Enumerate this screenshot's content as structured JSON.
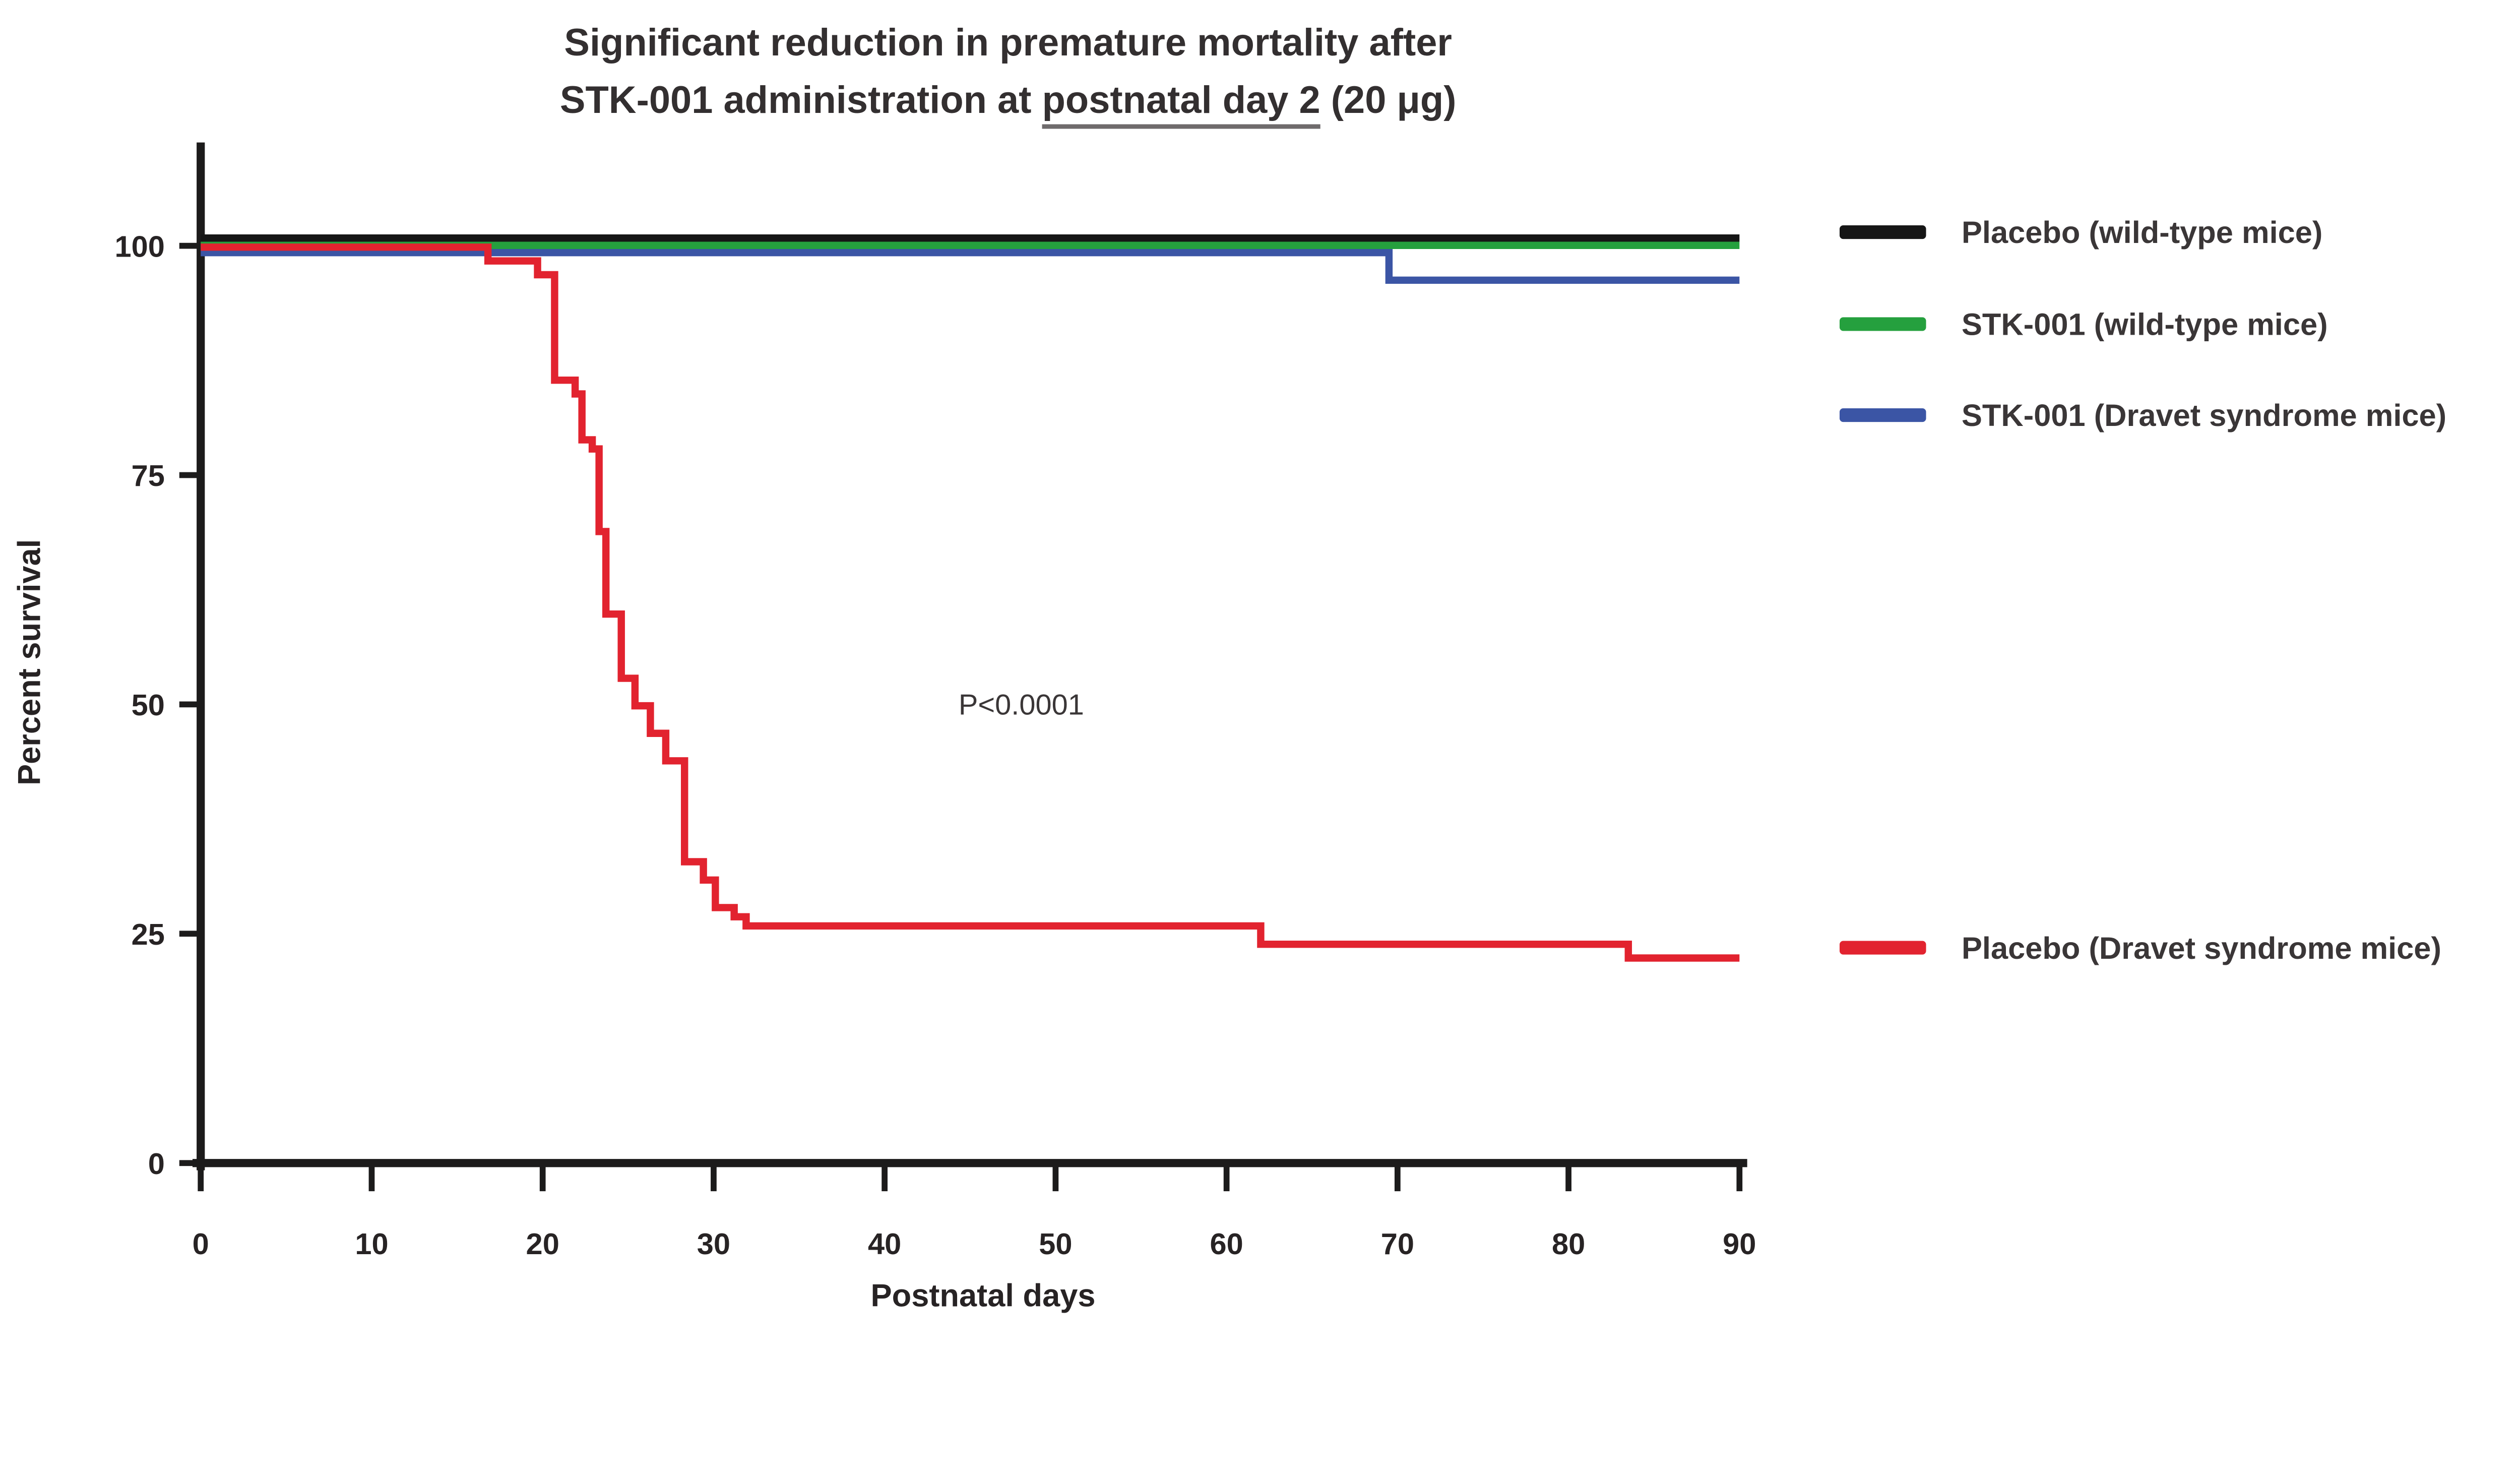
{
  "title": {
    "line1": "Significant reduction in premature mortality after",
    "line2_prefix": "STK-001 administration at ",
    "line2_underlined": "postnatal day 2",
    "line2_suffix": " (20 μg)"
  },
  "chart_data": {
    "type": "line",
    "subtype": "kaplan-meier-step-survival",
    "title": "Significant reduction in premature mortality after STK-001 administration at postnatal day 2 (20 μg)",
    "xlabel": "Postnatal days",
    "ylabel": "Percent survival",
    "xlim": [
      0,
      90
    ],
    "ylim": [
      0,
      100
    ],
    "x_ticks": [
      0,
      10,
      20,
      30,
      40,
      50,
      60,
      70,
      80,
      90
    ],
    "y_ticks": [
      0,
      25,
      50,
      75,
      100
    ],
    "grid": false,
    "legend_position": "right",
    "annotation": {
      "text": "P<0.0001",
      "x": 48,
      "y": 50
    },
    "series": [
      {
        "name": "Placebo (wild-type mice)",
        "color": "#161616",
        "steps": [
          [
            0,
            100
          ],
          [
            90,
            100
          ]
        ]
      },
      {
        "name": "STK-001 (wild-type mice)",
        "color": "#25a03e",
        "steps": [
          [
            0,
            100
          ],
          [
            90,
            100
          ]
        ]
      },
      {
        "name": "STK-001 (Dravet syndrome mice)",
        "color": "#3b55a5",
        "steps": [
          [
            0,
            100
          ],
          [
            69.5,
            97
          ],
          [
            90,
            97
          ]
        ]
      },
      {
        "name": "Placebo (Dravet syndrome mice)",
        "color": "#e2232f",
        "steps": [
          [
            0,
            100
          ],
          [
            16.8,
            98.5
          ],
          [
            19.7,
            97
          ],
          [
            20.7,
            85.5
          ],
          [
            21.9,
            84
          ],
          [
            22.3,
            79
          ],
          [
            22.9,
            78
          ],
          [
            23.3,
            69
          ],
          [
            23.7,
            60
          ],
          [
            24.6,
            53
          ],
          [
            25.4,
            50
          ],
          [
            26.3,
            47
          ],
          [
            27.2,
            44
          ],
          [
            28.3,
            33
          ],
          [
            29.4,
            31
          ],
          [
            30.1,
            28
          ],
          [
            31.2,
            27
          ],
          [
            31.9,
            26
          ],
          [
            62,
            24
          ],
          [
            83.5,
            22.5
          ],
          [
            90,
            22.5
          ]
        ]
      }
    ]
  }
}
